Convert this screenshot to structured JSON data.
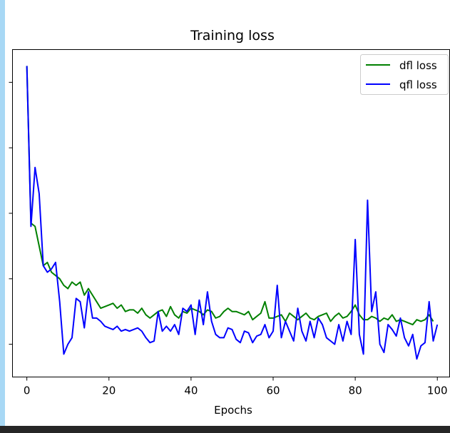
{
  "chart_data": {
    "type": "line",
    "title": "Training loss",
    "xlabel": "Epochs",
    "ylabel": "",
    "xlim": [
      -3.5,
      103
    ],
    "ylim": [
      0,
      1
    ],
    "x_ticks": [
      0,
      20,
      40,
      60,
      80,
      100
    ],
    "x_tick_labels": [
      "0",
      "20",
      "40",
      "60",
      "80",
      "100"
    ],
    "y_ticks": [
      0.1,
      0.3,
      0.5,
      0.7,
      0.9
    ],
    "legend_position": "top-right",
    "grid": false,
    "colors": {
      "dfl": "#008000",
      "qfl": "#0000ff"
    },
    "series": [
      {
        "name": "dfl loss",
        "color": "#008000",
        "values": [
          0.95,
          0.47,
          0.46,
          0.4,
          0.34,
          0.35,
          0.32,
          0.31,
          0.3,
          0.28,
          0.27,
          0.29,
          0.28,
          0.29,
          0.25,
          0.27,
          0.25,
          0.23,
          0.21,
          0.215,
          0.22,
          0.225,
          0.21,
          0.22,
          0.2,
          0.205,
          0.205,
          0.195,
          0.21,
          0.19,
          0.18,
          0.19,
          0.2,
          0.205,
          0.185,
          0.215,
          0.19,
          0.18,
          0.2,
          0.195,
          0.21,
          0.205,
          0.2,
          0.19,
          0.205,
          0.2,
          0.18,
          0.185,
          0.2,
          0.21,
          0.2,
          0.2,
          0.195,
          0.19,
          0.2,
          0.175,
          0.185,
          0.195,
          0.23,
          0.18,
          0.18,
          0.185,
          0.19,
          0.17,
          0.195,
          0.185,
          0.175,
          0.185,
          0.195,
          0.18,
          0.175,
          0.185,
          0.19,
          0.195,
          0.17,
          0.185,
          0.195,
          0.18,
          0.185,
          0.2,
          0.22,
          0.19,
          0.175,
          0.175,
          0.185,
          0.18,
          0.17,
          0.18,
          0.175,
          0.19,
          0.17,
          0.175,
          0.17,
          0.165,
          0.16,
          0.175,
          0.17,
          0.175,
          0.19,
          0.17
        ]
      },
      {
        "name": "qfl loss",
        "color": "#0000ff",
        "values": [
          0.95,
          0.46,
          0.64,
          0.56,
          0.34,
          0.32,
          0.33,
          0.35,
          0.23,
          0.07,
          0.1,
          0.12,
          0.24,
          0.23,
          0.15,
          0.26,
          0.18,
          0.18,
          0.17,
          0.155,
          0.15,
          0.145,
          0.155,
          0.14,
          0.145,
          0.14,
          0.145,
          0.15,
          0.14,
          0.12,
          0.105,
          0.11,
          0.2,
          0.14,
          0.155,
          0.14,
          0.16,
          0.13,
          0.21,
          0.2,
          0.22,
          0.13,
          0.235,
          0.16,
          0.26,
          0.17,
          0.13,
          0.12,
          0.12,
          0.15,
          0.145,
          0.115,
          0.105,
          0.14,
          0.135,
          0.105,
          0.125,
          0.13,
          0.16,
          0.12,
          0.14,
          0.28,
          0.12,
          0.17,
          0.14,
          0.11,
          0.21,
          0.14,
          0.11,
          0.17,
          0.12,
          0.18,
          0.16,
          0.12,
          0.11,
          0.1,
          0.16,
          0.11,
          0.17,
          0.13,
          0.42,
          0.13,
          0.07,
          0.54,
          0.2,
          0.26,
          0.1,
          0.075,
          0.16,
          0.145,
          0.125,
          0.18,
          0.12,
          0.095,
          0.13,
          0.055,
          0.095,
          0.105,
          0.23,
          0.11,
          0.16
        ]
      }
    ]
  }
}
